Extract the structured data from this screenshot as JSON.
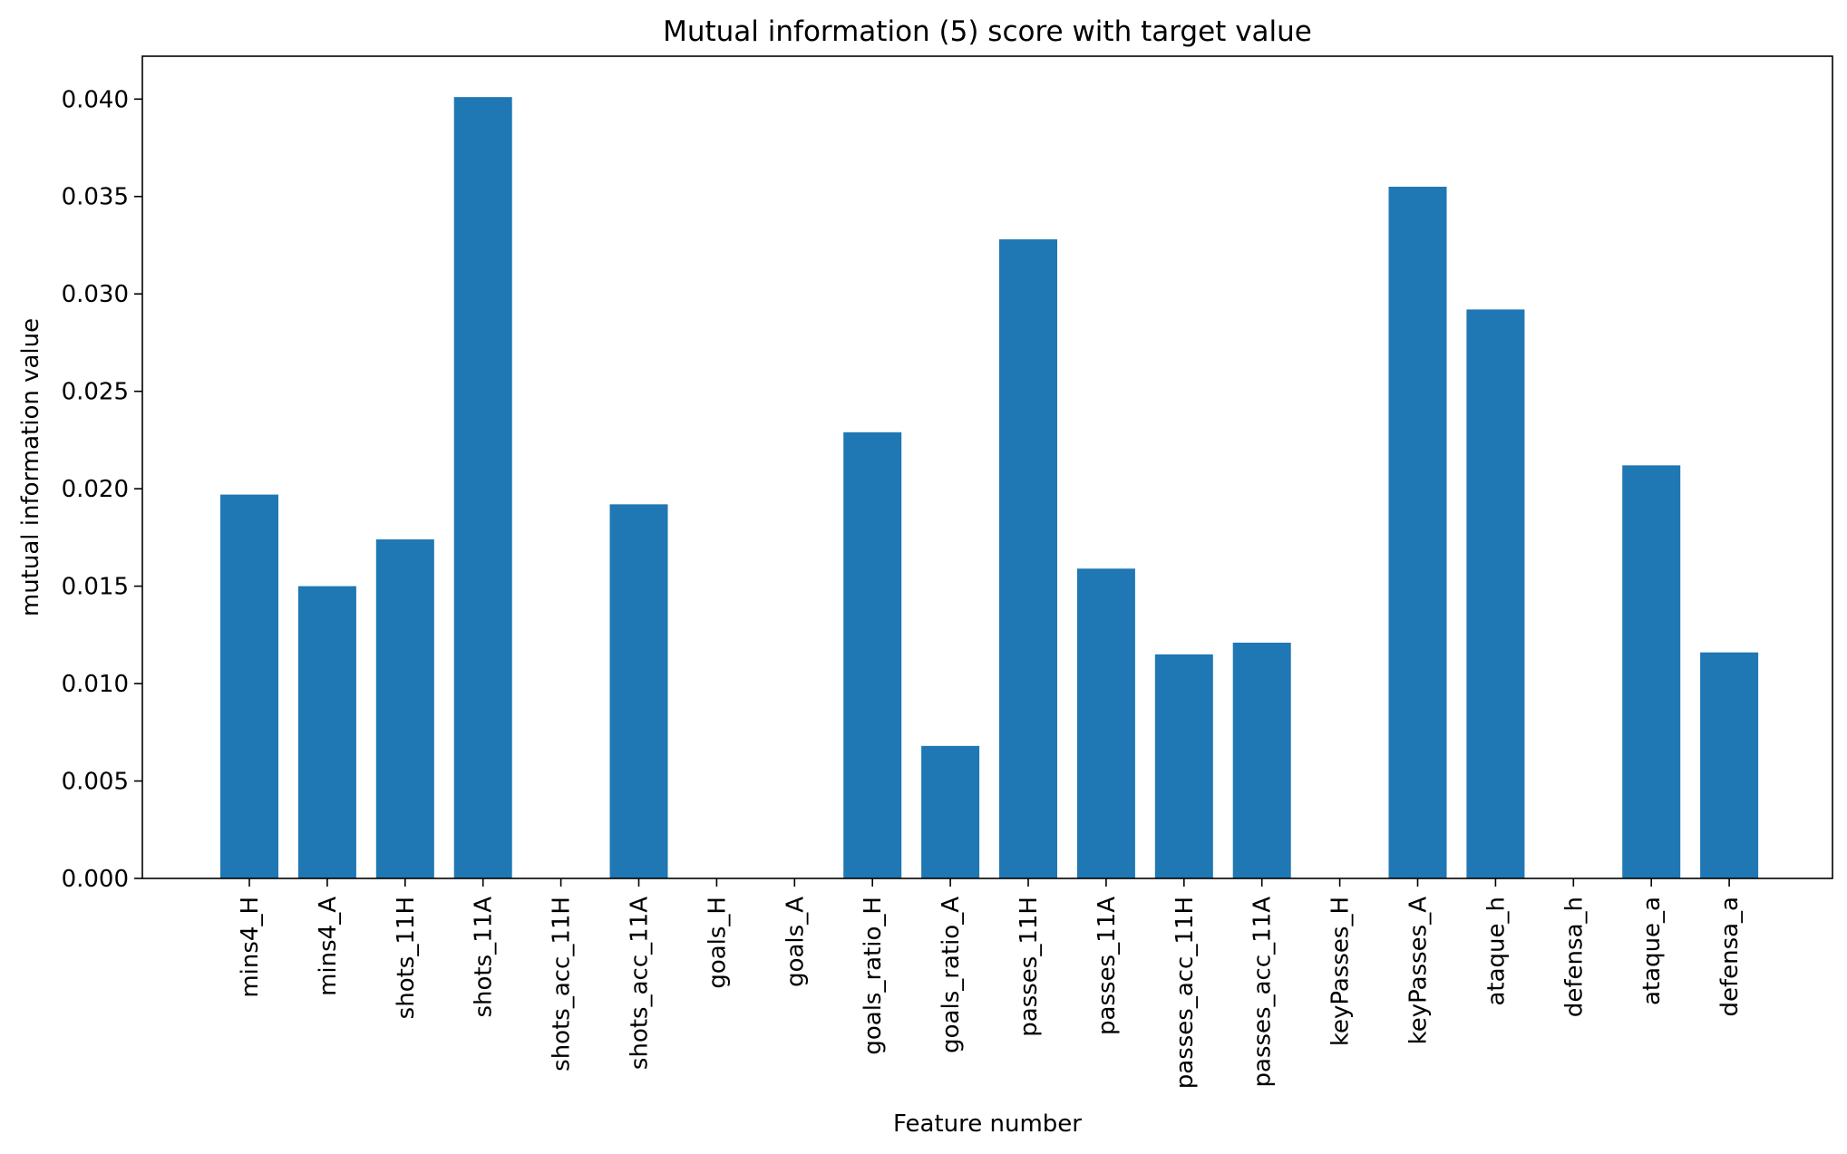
{
  "colors": {
    "bar": "#1f77b4",
    "axis": "#000000",
    "background": "#ffffff"
  },
  "chart_data": {
    "type": "bar",
    "title": "Mutual information (5) score with target value",
    "xlabel": "Feature number",
    "ylabel": "mutual information value",
    "ylim": [
      0,
      0.0422
    ],
    "yticks": [
      "0.000",
      "0.005",
      "0.010",
      "0.015",
      "0.020",
      "0.025",
      "0.030",
      "0.035",
      "0.040"
    ],
    "grid": false,
    "categories": [
      "mins4_H",
      "mins4_A",
      "shots_11H",
      "shots_11A",
      "shots_acc_11H",
      "shots_acc_11A",
      "goals_H",
      "goals_A",
      "goals_ratio_H",
      "goals_ratio_A",
      "passes_11H",
      "passes_11A",
      "passes_acc_11H",
      "passes_acc_11A",
      "keyPasses_H",
      "keyPasses_A",
      "ataque_h",
      "defensa_h",
      "ataque_a",
      "defensa_a"
    ],
    "values": [
      0.0197,
      0.015,
      0.0174,
      0.0401,
      0.0,
      0.0192,
      0.0,
      0.0,
      0.0229,
      0.0068,
      0.0328,
      0.0159,
      0.0115,
      0.0121,
      0.0,
      0.0355,
      0.0292,
      0.0,
      0.0212,
      0.0116
    ]
  }
}
